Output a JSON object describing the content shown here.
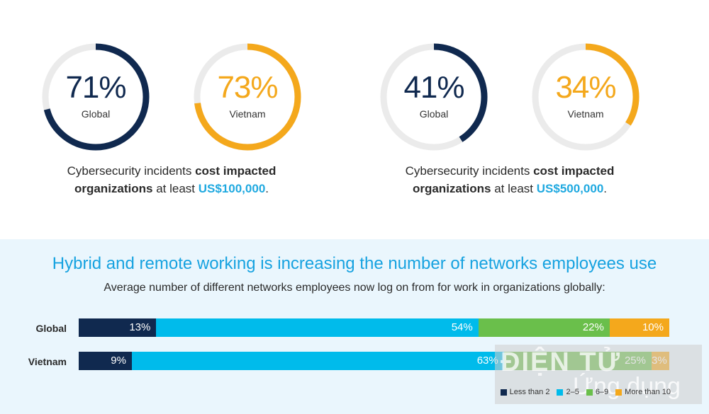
{
  "colors": {
    "navy": "#10294f",
    "orange": "#f4a81c",
    "track": "#ebebeb",
    "cyan": "#00bbeb",
    "green": "#6abf4b",
    "headline_blue": "#16a2e0",
    "amount_blue": "#1fa9e0"
  },
  "donuts": [
    {
      "pct_label": "71%",
      "value": 71,
      "label": "Global",
      "color": "#10294f"
    },
    {
      "pct_label": "73%",
      "value": 73,
      "label": "Vietnam",
      "color": "#f4a81c"
    },
    {
      "pct_label": "41%",
      "value": 41,
      "label": "Global",
      "color": "#10294f"
    },
    {
      "pct_label": "34%",
      "value": 34,
      "label": "Vietnam",
      "color": "#f4a81c"
    }
  ],
  "captions": [
    {
      "p1": "Cybersecurity incidents ",
      "b1": "cost impacted",
      "b2": "organizations",
      "p2": " at least ",
      "amount": "US$100,000",
      "p3": "."
    },
    {
      "p1": "Cybersecurity incidents ",
      "b1": "cost impacted",
      "b2": "organizations",
      "p2": " at least ",
      "amount": "US$500,000",
      "p3": "."
    }
  ],
  "headline": "Hybrid and remote working is increasing the number of networks employees use",
  "subheadline": "Average number of different networks employees now log on from for work in organizations globally:",
  "chart_data": {
    "type": "bar",
    "orientation": "horizontal-stacked-100",
    "categories": [
      "Global",
      "Vietnam"
    ],
    "series": [
      {
        "name": "Less than 2",
        "color": "#10294f",
        "values": [
          13,
          9
        ],
        "labels": [
          "13%",
          "9%"
        ]
      },
      {
        "name": "2–5",
        "color": "#00bbeb",
        "values": [
          54,
          63
        ],
        "labels": [
          "54%",
          "63%"
        ]
      },
      {
        "name": "6–9",
        "color": "#6abf4b",
        "values": [
          22,
          25
        ],
        "labels": [
          "22%",
          "25%"
        ]
      },
      {
        "name": "More than 10",
        "color": "#f4a81c",
        "values": [
          10,
          3
        ],
        "labels": [
          "10%",
          "3%"
        ]
      }
    ],
    "legend_position": "bottom-right"
  },
  "watermark": {
    "line1": "ĐIỆN TỬ",
    "line2": "Ứng dụng"
  }
}
